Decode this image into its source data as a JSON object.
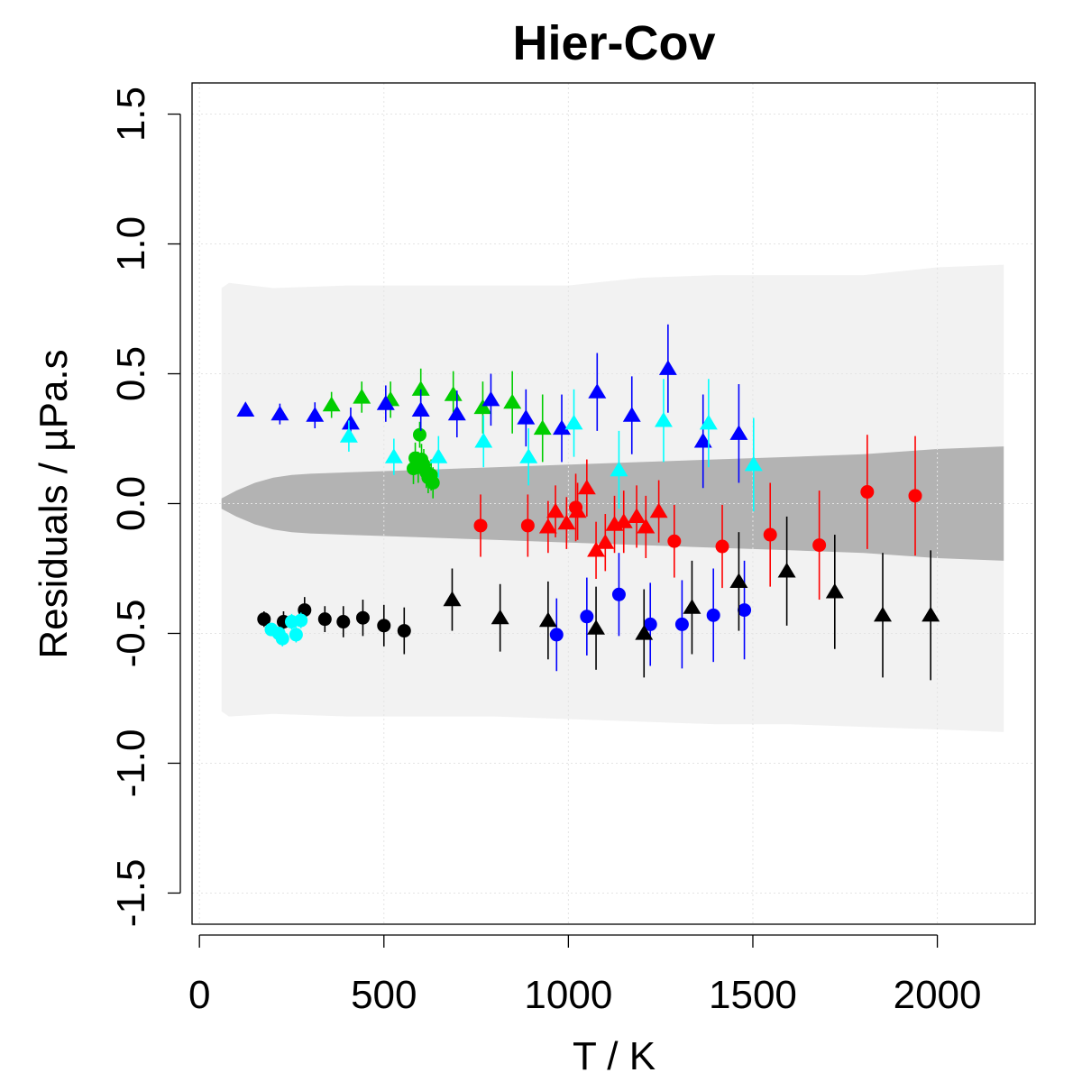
{
  "chart_data": {
    "type": "scatter",
    "title": "Hier-Cov",
    "xlabel": "T / K",
    "ylabel": "Residuals / µPa.s",
    "xlim": [
      -20,
      2265
    ],
    "ylim": [
      -1.62,
      1.62
    ],
    "xticks": [
      0,
      500,
      1000,
      1500,
      2000
    ],
    "xtick_labels": [
      "0",
      "500",
      "1000",
      "1500",
      "2000"
    ],
    "yticks": [
      -1.5,
      -1.0,
      -0.5,
      0.0,
      0.5,
      1.0,
      1.5
    ],
    "ytick_labels": [
      "-1.5",
      "-1.0",
      "-0.5",
      "0.0",
      "0.5",
      "1.0",
      "1.5"
    ],
    "grid": true,
    "colors": {
      "black": "#000000",
      "red": "#ff0000",
      "green": "#00cd00",
      "blue": "#0000ff",
      "cyan": "#00ffff",
      "outer_band": "#f2f2f2",
      "inner_band": "#b3b3b3"
    },
    "bands": [
      {
        "name": "outer prediction band",
        "color": "outer_band",
        "x": [
          60,
          80,
          200,
          400,
          600,
          800,
          1000,
          1200,
          1400,
          1600,
          1800,
          2000,
          2180
        ],
        "upper": [
          0.83,
          0.85,
          0.83,
          0.84,
          0.84,
          0.84,
          0.84,
          0.87,
          0.88,
          0.88,
          0.88,
          0.91,
          0.92
        ],
        "lower": [
          -0.8,
          -0.82,
          -0.81,
          -0.82,
          -0.82,
          -0.82,
          -0.83,
          -0.84,
          -0.85,
          -0.85,
          -0.86,
          -0.87,
          -0.88
        ]
      },
      {
        "name": "inner confidence band",
        "color": "inner_band",
        "x": [
          60,
          100,
          150,
          200,
          250,
          300,
          400,
          600,
          800,
          1000,
          1200,
          1400,
          1600,
          1800,
          2000,
          2180
        ],
        "upper": [
          0.02,
          0.05,
          0.08,
          0.1,
          0.11,
          0.115,
          0.12,
          0.13,
          0.14,
          0.15,
          0.16,
          0.17,
          0.18,
          0.19,
          0.21,
          0.22
        ],
        "lower": [
          -0.02,
          -0.05,
          -0.08,
          -0.1,
          -0.11,
          -0.115,
          -0.12,
          -0.13,
          -0.14,
          -0.15,
          -0.16,
          -0.17,
          -0.18,
          -0.19,
          -0.21,
          -0.22
        ]
      }
    ],
    "series": [
      {
        "name": "black-circles",
        "color": "black",
        "marker": "circle",
        "points": [
          {
            "x": 175,
            "y": -0.445,
            "err": 0.03
          },
          {
            "x": 228,
            "y": -0.455,
            "err": 0.04
          },
          {
            "x": 285,
            "y": -0.41,
            "err": 0.05
          },
          {
            "x": 340,
            "y": -0.445,
            "err": 0.05
          },
          {
            "x": 390,
            "y": -0.455,
            "err": 0.06
          },
          {
            "x": 443,
            "y": -0.44,
            "err": 0.07
          },
          {
            "x": 500,
            "y": -0.47,
            "err": 0.08
          },
          {
            "x": 555,
            "y": -0.49,
            "err": 0.09
          }
        ]
      },
      {
        "name": "cyan-circles",
        "color": "cyan",
        "marker": "circle",
        "points": [
          {
            "x": 195,
            "y": -0.485,
            "err": 0.02
          },
          {
            "x": 215,
            "y": -0.5,
            "err": 0.02
          },
          {
            "x": 225,
            "y": -0.52,
            "err": 0.03
          },
          {
            "x": 250,
            "y": -0.455,
            "err": 0.03
          },
          {
            "x": 262,
            "y": -0.505,
            "err": 0.03
          },
          {
            "x": 275,
            "y": -0.45,
            "err": 0.03
          }
        ]
      },
      {
        "name": "green-circles",
        "color": "green",
        "marker": "circle",
        "points": [
          {
            "x": 580,
            "y": 0.135,
            "err": 0.06
          },
          {
            "x": 585,
            "y": 0.175,
            "err": 0.06
          },
          {
            "x": 593,
            "y": 0.14,
            "err": 0.06
          },
          {
            "x": 597,
            "y": 0.265,
            "err": 0.05
          },
          {
            "x": 602,
            "y": 0.17,
            "err": 0.06
          },
          {
            "x": 608,
            "y": 0.15,
            "err": 0.06
          },
          {
            "x": 615,
            "y": 0.12,
            "err": 0.06
          },
          {
            "x": 620,
            "y": 0.1,
            "err": 0.06
          },
          {
            "x": 628,
            "y": 0.11,
            "err": 0.06
          },
          {
            "x": 633,
            "y": 0.08,
            "err": 0.06
          }
        ]
      },
      {
        "name": "red-circles",
        "color": "red",
        "marker": "circle",
        "points": [
          {
            "x": 762,
            "y": -0.085,
            "err": 0.12
          },
          {
            "x": 890,
            "y": -0.085,
            "err": 0.12
          },
          {
            "x": 1020,
            "y": -0.015,
            "err": 0.13
          },
          {
            "x": 1287,
            "y": -0.145,
            "err": 0.14
          },
          {
            "x": 1417,
            "y": -0.165,
            "err": 0.16
          },
          {
            "x": 1547,
            "y": -0.12,
            "err": 0.2
          },
          {
            "x": 1680,
            "y": -0.16,
            "err": 0.21
          },
          {
            "x": 1810,
            "y": 0.045,
            "err": 0.22
          },
          {
            "x": 1940,
            "y": 0.03,
            "err": 0.23
          }
        ]
      },
      {
        "name": "red-triangles",
        "color": "red",
        "marker": "triangle",
        "points": [
          {
            "x": 945,
            "y": -0.09,
            "err": 0.1
          },
          {
            "x": 965,
            "y": -0.03,
            "err": 0.1
          },
          {
            "x": 995,
            "y": -0.075,
            "err": 0.1
          },
          {
            "x": 1025,
            "y": -0.03,
            "err": 0.11
          },
          {
            "x": 1050,
            "y": 0.06,
            "err": 0.11
          },
          {
            "x": 1075,
            "y": -0.18,
            "err": 0.11
          },
          {
            "x": 1100,
            "y": -0.15,
            "err": 0.11
          },
          {
            "x": 1125,
            "y": -0.08,
            "err": 0.11
          },
          {
            "x": 1150,
            "y": -0.07,
            "err": 0.12
          },
          {
            "x": 1185,
            "y": -0.05,
            "err": 0.12
          },
          {
            "x": 1210,
            "y": -0.09,
            "err": 0.12
          },
          {
            "x": 1245,
            "y": -0.03,
            "err": 0.12
          }
        ]
      },
      {
        "name": "green-triangles",
        "color": "green",
        "marker": "triangle",
        "points": [
          {
            "x": 358,
            "y": 0.38,
            "err": 0.05
          },
          {
            "x": 440,
            "y": 0.41,
            "err": 0.06
          },
          {
            "x": 518,
            "y": 0.4,
            "err": 0.07
          },
          {
            "x": 600,
            "y": 0.44,
            "err": 0.08
          },
          {
            "x": 688,
            "y": 0.42,
            "err": 0.09
          },
          {
            "x": 768,
            "y": 0.37,
            "err": 0.1
          },
          {
            "x": 848,
            "y": 0.39,
            "err": 0.12
          },
          {
            "x": 930,
            "y": 0.29,
            "err": 0.13
          }
        ]
      },
      {
        "name": "blue-triangles",
        "color": "blue",
        "marker": "triangle",
        "points": [
          {
            "x": 125,
            "y": 0.36,
            "err": 0.02
          },
          {
            "x": 218,
            "y": 0.345,
            "err": 0.04
          },
          {
            "x": 313,
            "y": 0.34,
            "err": 0.05
          },
          {
            "x": 410,
            "y": 0.31,
            "err": 0.06
          },
          {
            "x": 505,
            "y": 0.385,
            "err": 0.07
          },
          {
            "x": 600,
            "y": 0.36,
            "err": 0.08
          },
          {
            "x": 698,
            "y": 0.345,
            "err": 0.09
          },
          {
            "x": 790,
            "y": 0.4,
            "err": 0.1
          },
          {
            "x": 885,
            "y": 0.33,
            "err": 0.11
          },
          {
            "x": 982,
            "y": 0.29,
            "err": 0.13
          },
          {
            "x": 1078,
            "y": 0.43,
            "err": 0.15
          },
          {
            "x": 1172,
            "y": 0.34,
            "err": 0.15
          },
          {
            "x": 1270,
            "y": 0.52,
            "err": 0.17
          },
          {
            "x": 1365,
            "y": 0.24,
            "err": 0.18
          },
          {
            "x": 1462,
            "y": 0.27,
            "err": 0.19
          }
        ]
      },
      {
        "name": "cyan-triangles",
        "color": "cyan",
        "marker": "triangle",
        "points": [
          {
            "x": 405,
            "y": 0.26,
            "err": 0.06
          },
          {
            "x": 527,
            "y": 0.18,
            "err": 0.07
          },
          {
            "x": 648,
            "y": 0.18,
            "err": 0.08
          },
          {
            "x": 770,
            "y": 0.24,
            "err": 0.1
          },
          {
            "x": 892,
            "y": 0.18,
            "err": 0.11
          },
          {
            "x": 1015,
            "y": 0.31,
            "err": 0.13
          },
          {
            "x": 1137,
            "y": 0.13,
            "err": 0.15
          },
          {
            "x": 1258,
            "y": 0.32,
            "err": 0.16
          },
          {
            "x": 1380,
            "y": 0.31,
            "err": 0.17
          },
          {
            "x": 1502,
            "y": 0.15,
            "err": 0.18
          }
        ]
      },
      {
        "name": "blue-circles",
        "color": "blue",
        "marker": "circle",
        "points": [
          {
            "x": 968,
            "y": -0.505,
            "err": 0.14
          },
          {
            "x": 1050,
            "y": -0.435,
            "err": 0.15
          },
          {
            "x": 1137,
            "y": -0.35,
            "err": 0.16
          },
          {
            "x": 1222,
            "y": -0.465,
            "err": 0.16
          },
          {
            "x": 1308,
            "y": -0.465,
            "err": 0.17
          },
          {
            "x": 1393,
            "y": -0.43,
            "err": 0.18
          },
          {
            "x": 1477,
            "y": -0.41,
            "err": 0.19
          }
        ]
      },
      {
        "name": "black-triangles",
        "color": "black",
        "marker": "triangle",
        "points": [
          {
            "x": 685,
            "y": -0.37,
            "err": 0.12
          },
          {
            "x": 815,
            "y": -0.44,
            "err": 0.13
          },
          {
            "x": 945,
            "y": -0.45,
            "err": 0.15
          },
          {
            "x": 1075,
            "y": -0.48,
            "err": 0.16
          },
          {
            "x": 1205,
            "y": -0.5,
            "err": 0.17
          },
          {
            "x": 1335,
            "y": -0.4,
            "err": 0.18
          },
          {
            "x": 1462,
            "y": -0.3,
            "err": 0.19
          },
          {
            "x": 1592,
            "y": -0.26,
            "err": 0.21
          },
          {
            "x": 1722,
            "y": -0.34,
            "err": 0.22
          },
          {
            "x": 1852,
            "y": -0.43,
            "err": 0.24
          },
          {
            "x": 1982,
            "y": -0.43,
            "err": 0.25
          }
        ]
      }
    ]
  }
}
